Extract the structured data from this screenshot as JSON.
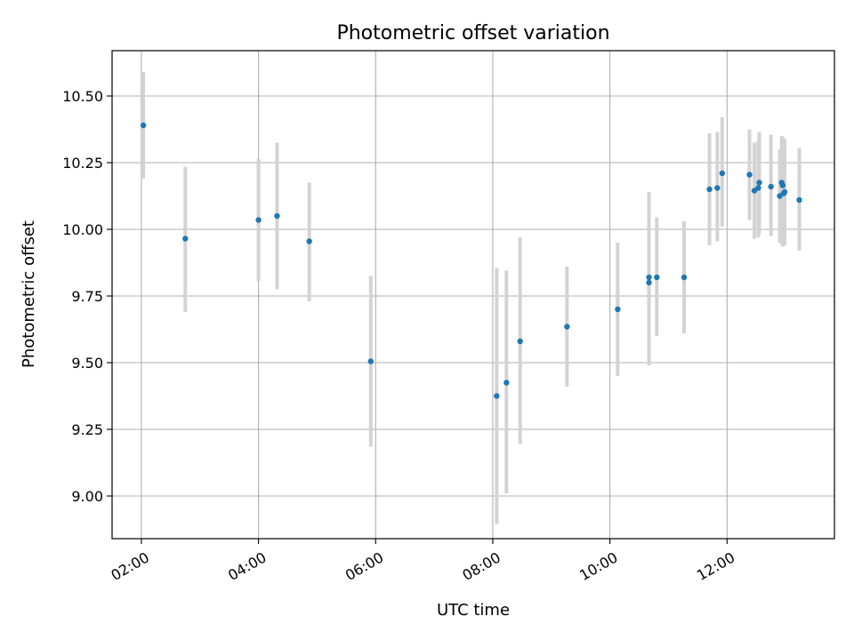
{
  "chart_data": {
    "type": "scatter",
    "title": "Photometric offset variation",
    "xlabel": "UTC time",
    "ylabel": "Photometric offset",
    "xlim": [
      "01:30",
      "13:50"
    ],
    "ylim": [
      8.84,
      10.67
    ],
    "x_ticks": [
      "02:00",
      "04:00",
      "06:00",
      "08:00",
      "10:00",
      "12:00"
    ],
    "y_ticks": [
      9.0,
      9.25,
      9.5,
      9.75,
      10.0,
      10.25,
      10.5
    ],
    "y_tick_labels": [
      "9.00",
      "9.25",
      "9.50",
      "9.75",
      "10.00",
      "10.25",
      "10.50"
    ],
    "grid": true,
    "point_color": "#1f77b4",
    "errorbar_color": "#d3d3d3",
    "points": [
      {
        "x": "02:02",
        "y": 10.39,
        "yerr": [
          10.19,
          10.59
        ]
      },
      {
        "x": "02:45",
        "y": 9.965,
        "yerr": [
          9.69,
          10.235
        ]
      },
      {
        "x": "04:00",
        "y": 10.035,
        "yerr": [
          9.805,
          10.265
        ]
      },
      {
        "x": "04:19",
        "y": 10.05,
        "yerr": [
          9.775,
          10.325
        ]
      },
      {
        "x": "04:52",
        "y": 9.955,
        "yerr": [
          9.73,
          10.175
        ]
      },
      {
        "x": "05:55",
        "y": 9.505,
        "yerr": [
          9.185,
          9.825
        ]
      },
      {
        "x": "08:04",
        "y": 9.375,
        "yerr": [
          8.895,
          9.855
        ]
      },
      {
        "x": "08:14",
        "y": 9.425,
        "yerr": [
          9.01,
          9.845
        ]
      },
      {
        "x": "08:28",
        "y": 9.58,
        "yerr": [
          9.195,
          9.97
        ]
      },
      {
        "x": "09:16",
        "y": 9.635,
        "yerr": [
          9.41,
          9.86
        ]
      },
      {
        "x": "10:08",
        "y": 9.7,
        "yerr": [
          9.45,
          9.95
        ]
      },
      {
        "x": "10:40",
        "y": 9.8,
        "yerr": [
          9.49,
          10.14
        ]
      },
      {
        "x": "10:40",
        "y": 9.82,
        "yerr": [
          9.6,
          10.045
        ]
      },
      {
        "x": "10:48",
        "y": 9.82,
        "yerr": [
          9.6,
          10.045
        ]
      },
      {
        "x": "11:16",
        "y": 9.82,
        "yerr": [
          9.61,
          10.03
        ]
      },
      {
        "x": "11:42",
        "y": 10.15,
        "yerr": [
          9.94,
          10.36
        ]
      },
      {
        "x": "11:50",
        "y": 10.155,
        "yerr": [
          9.955,
          10.365
        ]
      },
      {
        "x": "11:55",
        "y": 10.21,
        "yerr": [
          10.01,
          10.42
        ]
      },
      {
        "x": "12:23",
        "y": 10.205,
        "yerr": [
          10.035,
          10.375
        ]
      },
      {
        "x": "12:28",
        "y": 10.145,
        "yerr": [
          9.965,
          10.325
        ]
      },
      {
        "x": "12:32",
        "y": 10.155,
        "yerr": [
          9.97,
          10.33
        ]
      },
      {
        "x": "12:33",
        "y": 10.175,
        "yerr": [
          9.985,
          10.365
        ]
      },
      {
        "x": "12:45",
        "y": 10.16,
        "yerr": [
          9.975,
          10.355
        ]
      },
      {
        "x": "12:54",
        "y": 10.125,
        "yerr": [
          9.95,
          10.3
        ]
      },
      {
        "x": "12:56",
        "y": 10.175,
        "yerr": [
          9.945,
          10.35
        ]
      },
      {
        "x": "12:57",
        "y": 10.165,
        "yerr": [
          9.935,
          10.345
        ]
      },
      {
        "x": "12:58",
        "y": 10.135,
        "yerr": [
          9.945,
          10.325
        ]
      },
      {
        "x": "12:59",
        "y": 10.14,
        "yerr": [
          9.94,
          10.34
        ]
      },
      {
        "x": "13:14",
        "y": 10.11,
        "yerr": [
          9.92,
          10.305
        ]
      }
    ]
  }
}
